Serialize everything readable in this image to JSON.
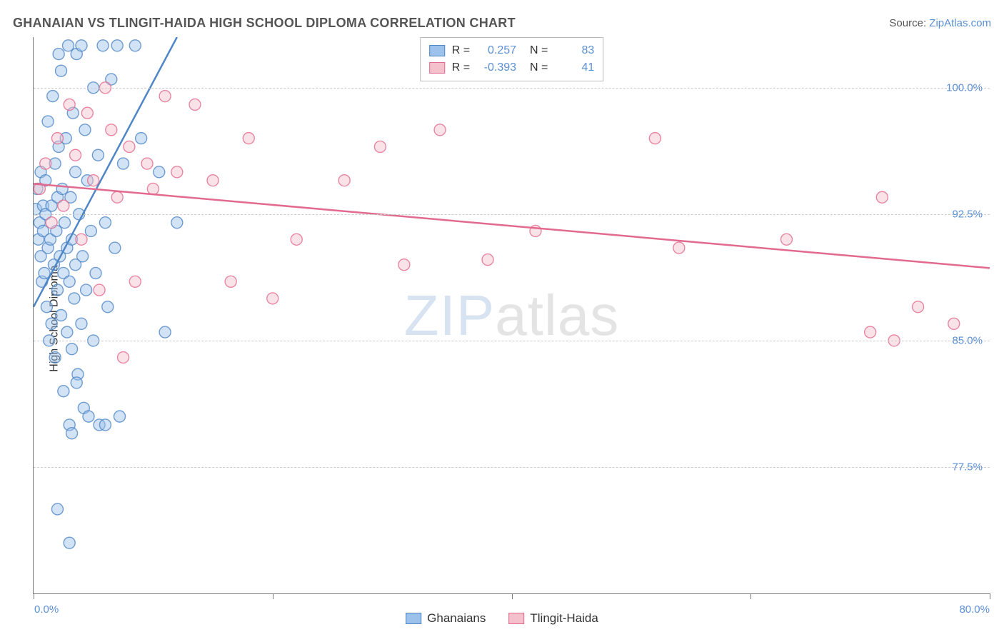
{
  "title": "GHANAIAN VS TLINGIT-HAIDA HIGH SCHOOL DIPLOMA CORRELATION CHART",
  "source": {
    "label": "Source: ",
    "link_text": "ZipAtlas.com"
  },
  "watermark": {
    "part1": "ZIP",
    "part2": "atlas"
  },
  "chart": {
    "type": "scatter",
    "ylabel": "High School Diploma",
    "xlim": [
      0,
      80
    ],
    "ylim": [
      70,
      103
    ],
    "xticks": [
      0,
      20,
      40,
      60,
      80
    ],
    "xtick_labels": {
      "min": "0.0%",
      "max": "80.0%"
    },
    "yticks": [
      77.5,
      85.0,
      92.5,
      100.0
    ],
    "ytick_labels": [
      "77.5%",
      "85.0%",
      "92.5%",
      "100.0%"
    ],
    "grid_color": "#cccccc",
    "background_color": "#ffffff",
    "axis_color": "#777777",
    "tick_label_color": "#5a8fd6",
    "marker_radius": 8,
    "marker_opacity": 0.45,
    "series": [
      {
        "name": "Ghanaians",
        "color_fill": "#9cc1ea",
        "color_stroke": "#4f86c6",
        "R": "0.257",
        "N": "83",
        "trend": {
          "x1": 0,
          "y1": 87.0,
          "x2": 12,
          "y2": 103.0,
          "dash_from_x": 12,
          "dash_to_x": 18
        },
        "points": [
          [
            0.2,
            92.8
          ],
          [
            0.3,
            94.0
          ],
          [
            0.4,
            91.0
          ],
          [
            0.5,
            92.0
          ],
          [
            0.6,
            90.0
          ],
          [
            0.6,
            95.0
          ],
          [
            0.7,
            88.5
          ],
          [
            0.8,
            93.0
          ],
          [
            0.8,
            91.5
          ],
          [
            0.9,
            89.0
          ],
          [
            1.0,
            92.5
          ],
          [
            1.0,
            94.5
          ],
          [
            1.1,
            87.0
          ],
          [
            1.2,
            90.5
          ],
          [
            1.2,
            98.0
          ],
          [
            1.3,
            85.0
          ],
          [
            1.4,
            91.0
          ],
          [
            1.5,
            93.0
          ],
          [
            1.5,
            86.0
          ],
          [
            1.6,
            99.5
          ],
          [
            1.7,
            89.5
          ],
          [
            1.8,
            95.5
          ],
          [
            1.8,
            84.0
          ],
          [
            1.9,
            91.5
          ],
          [
            2.0,
            93.5
          ],
          [
            2.0,
            88.0
          ],
          [
            2.1,
            102.0
          ],
          [
            2.1,
            96.5
          ],
          [
            2.2,
            90.0
          ],
          [
            2.3,
            86.5
          ],
          [
            2.3,
            101.0
          ],
          [
            2.4,
            94.0
          ],
          [
            2.5,
            89.0
          ],
          [
            2.5,
            82.0
          ],
          [
            2.6,
            92.0
          ],
          [
            2.7,
            97.0
          ],
          [
            2.8,
            90.5
          ],
          [
            2.8,
            85.5
          ],
          [
            2.9,
            102.5
          ],
          [
            3.0,
            88.5
          ],
          [
            3.0,
            80.0
          ],
          [
            3.1,
            93.5
          ],
          [
            3.2,
            91.0
          ],
          [
            3.2,
            84.5
          ],
          [
            3.3,
            98.5
          ],
          [
            3.4,
            87.5
          ],
          [
            3.5,
            95.0
          ],
          [
            3.5,
            89.5
          ],
          [
            3.6,
            102.0
          ],
          [
            3.7,
            83.0
          ],
          [
            3.8,
            92.5
          ],
          [
            4.0,
            102.5
          ],
          [
            4.0,
            86.0
          ],
          [
            4.1,
            90.0
          ],
          [
            4.2,
            81.0
          ],
          [
            4.3,
            97.5
          ],
          [
            4.4,
            88.0
          ],
          [
            4.5,
            94.5
          ],
          [
            4.6,
            80.5
          ],
          [
            4.8,
            91.5
          ],
          [
            5.0,
            100.0
          ],
          [
            5.0,
            85.0
          ],
          [
            5.2,
            89.0
          ],
          [
            5.4,
            96.0
          ],
          [
            5.5,
            80.0
          ],
          [
            5.8,
            102.5
          ],
          [
            6.0,
            92.0
          ],
          [
            6.2,
            87.0
          ],
          [
            6.5,
            100.5
          ],
          [
            6.8,
            90.5
          ],
          [
            7.0,
            102.5
          ],
          [
            7.2,
            80.5
          ],
          [
            7.5,
            95.5
          ],
          [
            2.0,
            75.0
          ],
          [
            3.0,
            73.0
          ],
          [
            3.2,
            79.5
          ],
          [
            3.6,
            82.5
          ],
          [
            6.0,
            80.0
          ],
          [
            8.5,
            102.5
          ],
          [
            9.0,
            97.0
          ],
          [
            10.5,
            95.0
          ],
          [
            11.0,
            85.5
          ],
          [
            12.0,
            92.0
          ]
        ]
      },
      {
        "name": "Tlingit-Haida",
        "color_fill": "#f4c0cc",
        "color_stroke": "#e26a8e",
        "R": "-0.393",
        "N": "41",
        "trend": {
          "x1": 0,
          "y1": 94.3,
          "x2": 80,
          "y2": 89.3
        },
        "points": [
          [
            0.5,
            94.0
          ],
          [
            1.0,
            95.5
          ],
          [
            1.5,
            92.0
          ],
          [
            2.0,
            97.0
          ],
          [
            2.5,
            93.0
          ],
          [
            3.0,
            99.0
          ],
          [
            3.5,
            96.0
          ],
          [
            4.0,
            91.0
          ],
          [
            4.5,
            98.5
          ],
          [
            5.0,
            94.5
          ],
          [
            5.5,
            88.0
          ],
          [
            6.0,
            100.0
          ],
          [
            6.5,
            97.5
          ],
          [
            7.0,
            93.5
          ],
          [
            7.5,
            84.0
          ],
          [
            8.0,
            96.5
          ],
          [
            8.5,
            88.5
          ],
          [
            9.5,
            95.5
          ],
          [
            10.0,
            94.0
          ],
          [
            11.0,
            99.5
          ],
          [
            12.0,
            95.0
          ],
          [
            13.5,
            99.0
          ],
          [
            15.0,
            94.5
          ],
          [
            16.5,
            88.5
          ],
          [
            18.0,
            97.0
          ],
          [
            20.0,
            87.5
          ],
          [
            22.0,
            91.0
          ],
          [
            26.0,
            94.5
          ],
          [
            29.0,
            96.5
          ],
          [
            31.0,
            89.5
          ],
          [
            34.0,
            97.5
          ],
          [
            38.0,
            89.8
          ],
          [
            42.0,
            91.5
          ],
          [
            52.0,
            97.0
          ],
          [
            54.0,
            90.5
          ],
          [
            63.0,
            91.0
          ],
          [
            70.0,
            85.5
          ],
          [
            71.0,
            93.5
          ],
          [
            72.0,
            85.0
          ],
          [
            74.0,
            87.0
          ],
          [
            77.0,
            86.0
          ]
        ]
      }
    ],
    "legend_bottom": [
      {
        "label": "Ghanaians",
        "fill": "#9cc1ea",
        "stroke": "#4f86c6"
      },
      {
        "label": "Tlingit-Haida",
        "fill": "#f4c0cc",
        "stroke": "#e26a8e"
      }
    ]
  }
}
